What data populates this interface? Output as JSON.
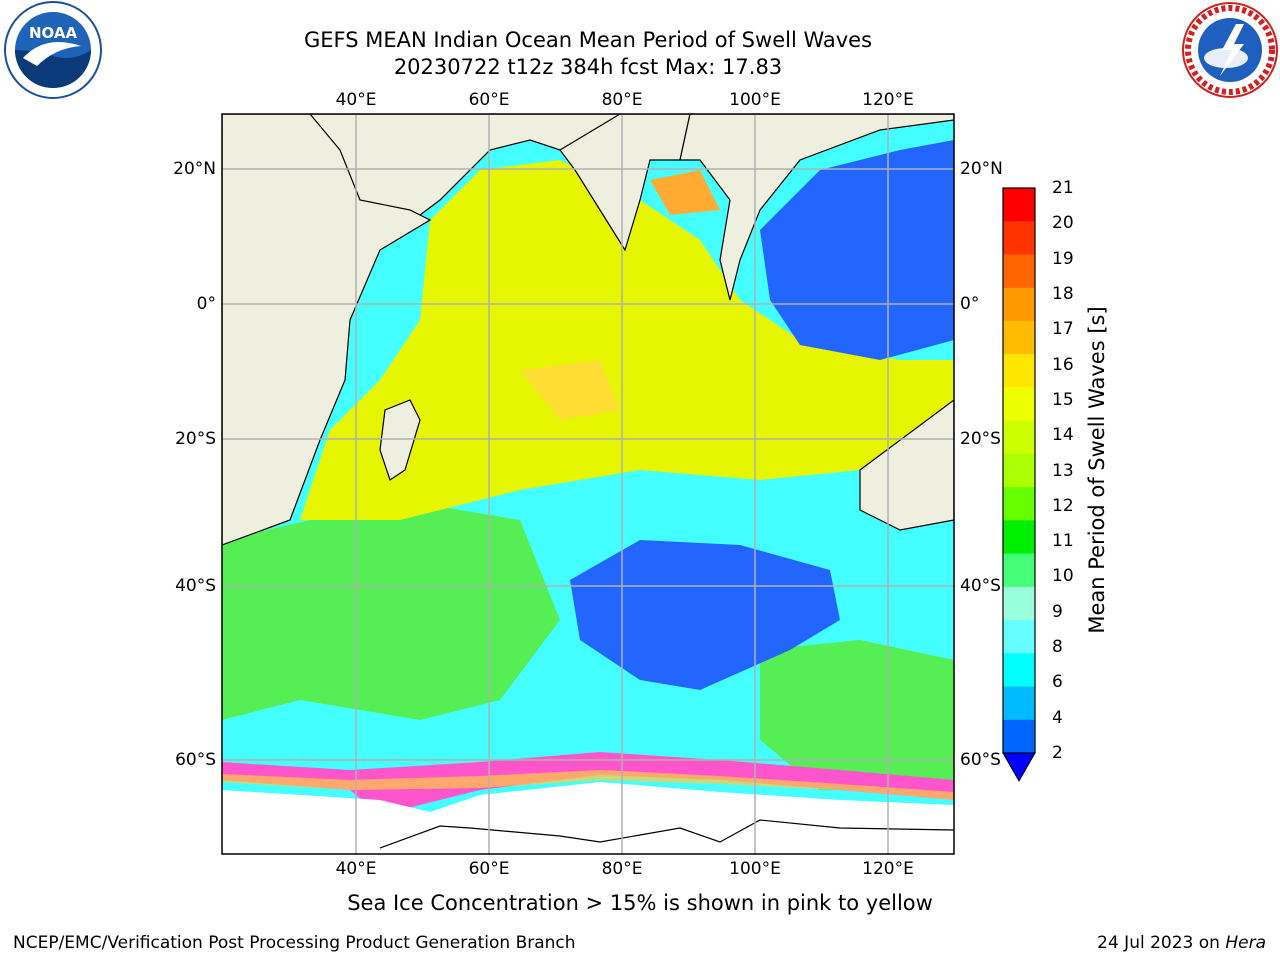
{
  "header": {
    "title_line1": "GEFS MEAN Indian Ocean Mean Period of Swell Waves",
    "title_line2": "20230722 t12z 384h fcst   Max: 17.83"
  },
  "logos": {
    "left": {
      "name": "noaa-logo",
      "text": "NOAA"
    },
    "right": {
      "name": "nws-logo",
      "text": "NATIONAL WEATHER SERVICE"
    }
  },
  "map": {
    "lon_ticks_top": [
      "40°E",
      "60°E",
      "80°E",
      "100°E",
      "120°E"
    ],
    "lon_ticks_bottom": [
      "40°E",
      "60°E",
      "80°E",
      "100°E",
      "120°E"
    ],
    "lat_ticks_left": [
      "20°N",
      "0°",
      "20°S",
      "40°S",
      "60°S"
    ],
    "lat_ticks_right": [
      "20°N",
      "0°",
      "20°S",
      "40°S",
      "60°S"
    ],
    "colors": {
      "land": "#efefdf",
      "ocean_yellow": "#e6f500",
      "ocean_cyan": "#44ffff",
      "ice_pink": "#ff55cc",
      "grid": "#b0b0b0"
    }
  },
  "colorbar": {
    "label": "Mean Period of Swell Waves [s]",
    "ticks": [
      "21",
      "20",
      "19",
      "18",
      "17",
      "16",
      "15",
      "14",
      "13",
      "12",
      "11",
      "10",
      "9",
      "8",
      "6",
      "4",
      "2"
    ],
    "colors_top_to_bottom": [
      "#ff0000",
      "#ff3300",
      "#ff6600",
      "#ff9900",
      "#ffbb00",
      "#ffe600",
      "#eeff00",
      "#ccff00",
      "#aaff00",
      "#66ff00",
      "#00ee00",
      "#44ff77",
      "#99ffdd",
      "#66ffff",
      "#00ffff",
      "#00bbff",
      "#0066ff"
    ],
    "extend_color": "#0000ff"
  },
  "caption": "Sea Ice Concentration > 15% is shown in pink to yellow",
  "footer": {
    "left": "NCEP/EMC/Verification Post Processing Product Generation Branch",
    "right_prefix": "24 Jul 2023 on ",
    "right_host": "Hera"
  }
}
